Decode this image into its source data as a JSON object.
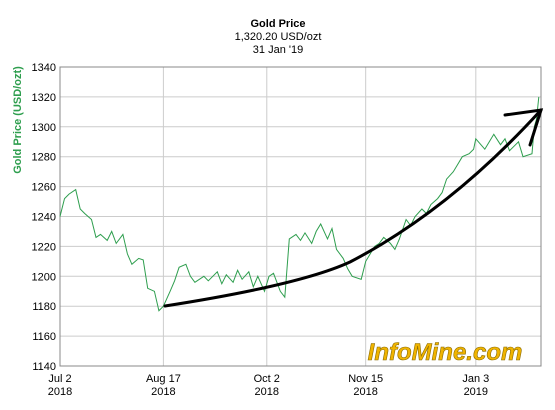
{
  "chart_data": {
    "type": "line",
    "title": "Gold Price",
    "subtitle": "1,320.20 USD/ozt",
    "date_label": "31 Jan '19",
    "y_label": "Gold Price (USD/ozt)",
    "watermark": "InfoMine.com",
    "x": [
      "2018-07-02",
      "2018-07-04",
      "2018-07-06",
      "2018-07-09",
      "2018-07-11",
      "2018-07-13",
      "2018-07-16",
      "2018-07-18",
      "2018-07-20",
      "2018-07-23",
      "2018-07-25",
      "2018-07-27",
      "2018-07-30",
      "2018-08-01",
      "2018-08-03",
      "2018-08-06",
      "2018-08-08",
      "2018-08-10",
      "2018-08-13",
      "2018-08-15",
      "2018-08-17",
      "2018-08-20",
      "2018-08-22",
      "2018-08-24",
      "2018-08-27",
      "2018-08-29",
      "2018-08-31",
      "2018-09-04",
      "2018-09-06",
      "2018-09-10",
      "2018-09-12",
      "2018-09-14",
      "2018-09-17",
      "2018-09-19",
      "2018-09-21",
      "2018-09-24",
      "2018-09-26",
      "2018-09-28",
      "2018-10-01",
      "2018-10-03",
      "2018-10-05",
      "2018-10-08",
      "2018-10-10",
      "2018-10-12",
      "2018-10-15",
      "2018-10-17",
      "2018-10-19",
      "2018-10-22",
      "2018-10-24",
      "2018-10-26",
      "2018-10-29",
      "2018-10-31",
      "2018-11-02",
      "2018-11-05",
      "2018-11-07",
      "2018-11-09",
      "2018-11-13",
      "2018-11-15",
      "2018-11-19",
      "2018-11-21",
      "2018-11-23",
      "2018-11-26",
      "2018-11-28",
      "2018-11-30",
      "2018-12-03",
      "2018-12-05",
      "2018-12-07",
      "2018-12-10",
      "2018-12-12",
      "2018-12-14",
      "2018-12-17",
      "2018-12-19",
      "2018-12-21",
      "2018-12-24",
      "2018-12-26",
      "2018-12-28",
      "2018-12-31",
      "2019-01-02",
      "2019-01-03",
      "2019-01-07",
      "2019-01-09",
      "2019-01-11",
      "2019-01-14",
      "2019-01-16",
      "2019-01-18",
      "2019-01-22",
      "2019-01-24",
      "2019-01-28",
      "2019-01-29",
      "2019-01-30",
      "2019-01-31"
    ],
    "series": [
      {
        "name": "Gold Price",
        "color": "#2e9e4e",
        "values": [
          1240,
          1252,
          1255,
          1258,
          1245,
          1242,
          1238,
          1226,
          1228,
          1224,
          1230,
          1222,
          1228,
          1215,
          1208,
          1212,
          1211,
          1192,
          1190,
          1177,
          1180,
          1190,
          1197,
          1206,
          1208,
          1200,
          1196,
          1200,
          1197,
          1203,
          1195,
          1201,
          1196,
          1204,
          1198,
          1203,
          1193,
          1200,
          1190,
          1200,
          1202,
          1190,
          1186,
          1225,
          1228,
          1224,
          1229,
          1222,
          1230,
          1235,
          1225,
          1232,
          1218,
          1212,
          1205,
          1200,
          1198,
          1210,
          1220,
          1222,
          1226,
          1222,
          1218,
          1225,
          1238,
          1234,
          1240,
          1245,
          1242,
          1248,
          1252,
          1256,
          1265,
          1270,
          1275,
          1280,
          1282,
          1285,
          1292,
          1285,
          1290,
          1295,
          1288,
          1292,
          1284,
          1290,
          1280,
          1282,
          1300,
          1305,
          1320
        ]
      }
    ],
    "xlim": [
      "2018-07-02",
      "2019-02-01"
    ],
    "xticks": [
      {
        "value": "2018-07-02",
        "label": "Jul 2\n2018"
      },
      {
        "value": "2018-08-17",
        "label": "Aug 17\n2018"
      },
      {
        "value": "2018-10-02",
        "label": "Oct 2\n2018"
      },
      {
        "value": "2018-11-15",
        "label": "Nov 15\n2018"
      },
      {
        "value": "2019-01-03",
        "label": "Jan 3\n2019"
      }
    ],
    "ylim": [
      1140,
      1340
    ],
    "yticks": [
      1140,
      1160,
      1180,
      1200,
      1220,
      1240,
      1260,
      1280,
      1300,
      1320,
      1340
    ],
    "grid": true
  }
}
